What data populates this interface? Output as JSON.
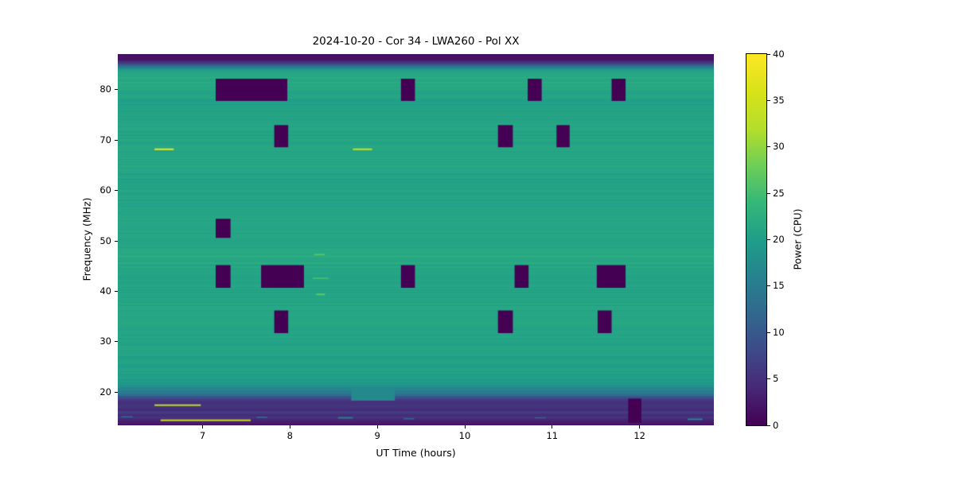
{
  "figure": {
    "title": "2024-10-20 - Cor 34 - LWA260 - Pol XX",
    "xlabel": "UT Time (hours)",
    "ylabel": "Frequency (MHz)",
    "colorbar_label": "Power (CPU)"
  },
  "chart_data": {
    "type": "heatmap",
    "title": "2024-10-20 - Cor 34 - LWA260 - Pol XX",
    "xlabel": "UT Time (hours)",
    "ylabel": "Frequency (MHz)",
    "x_range": [
      6.03,
      12.85
    ],
    "y_range": [
      13.4,
      87.1
    ],
    "x_ticks": [
      7,
      8,
      9,
      10,
      11,
      12
    ],
    "y_ticks": [
      20,
      30,
      40,
      50,
      60,
      70,
      80
    ],
    "grid": false,
    "colorbar": {
      "label": "Power (CPU)",
      "min": 0,
      "max": 40,
      "ticks": [
        0,
        5,
        10,
        15,
        20,
        25,
        30,
        35,
        40
      ],
      "colormap": "viridis",
      "stops": [
        [
          0.0,
          "#440154"
        ],
        [
          0.1,
          "#482878"
        ],
        [
          0.2,
          "#3e4a89"
        ],
        [
          0.3,
          "#31688e"
        ],
        [
          0.4,
          "#26828e"
        ],
        [
          0.5,
          "#1f9e89"
        ],
        [
          0.6,
          "#35b779"
        ],
        [
          0.7,
          "#6ece58"
        ],
        [
          0.8,
          "#b5de2b"
        ],
        [
          0.9,
          "#d8e219"
        ],
        [
          1.0,
          "#fde725"
        ]
      ]
    },
    "background_power_profile": [
      [
        87.5,
        1.5
      ],
      [
        86.0,
        2.0
      ],
      [
        85.3,
        6.0
      ],
      [
        84.6,
        14.0
      ],
      [
        83.9,
        20.0
      ],
      [
        83.2,
        22.0
      ],
      [
        82.2,
        21.6
      ],
      [
        78.0,
        20.8
      ],
      [
        74.0,
        21.2
      ],
      [
        70.0,
        21.0
      ],
      [
        66.0,
        21.3
      ],
      [
        62.0,
        20.7
      ],
      [
        58.0,
        21.0
      ],
      [
        54.0,
        21.2
      ],
      [
        50.0,
        21.0
      ],
      [
        47.0,
        21.8
      ],
      [
        44.0,
        21.2
      ],
      [
        40.0,
        20.9
      ],
      [
        36.0,
        21.1
      ],
      [
        32.0,
        21.0
      ],
      [
        28.0,
        20.8
      ],
      [
        25.0,
        20.6
      ],
      [
        23.5,
        20.3
      ],
      [
        22.5,
        20.0
      ],
      [
        21.0,
        17.5
      ],
      [
        20.0,
        15.0
      ],
      [
        19.2,
        11.0
      ],
      [
        18.6,
        7.0
      ],
      [
        18.0,
        4.5
      ],
      [
        17.3,
        5.5
      ],
      [
        16.6,
        4.0
      ],
      [
        16.0,
        6.5
      ],
      [
        15.4,
        4.0
      ],
      [
        14.9,
        6.0
      ],
      [
        14.4,
        3.0
      ],
      [
        13.8,
        2.5
      ],
      [
        13.4,
        2.0
      ]
    ],
    "row_noise_amplitude": 1.6,
    "flagged_power": 0,
    "flagged_blocks": [
      {
        "t0": 7.15,
        "t1": 7.97,
        "f0": 77.8,
        "f1": 82.2
      },
      {
        "t0": 9.27,
        "t1": 9.43,
        "f0": 77.8,
        "f1": 82.2
      },
      {
        "t0": 10.72,
        "t1": 10.88,
        "f0": 77.8,
        "f1": 82.2
      },
      {
        "t0": 11.68,
        "t1": 11.84,
        "f0": 77.8,
        "f1": 82.2
      },
      {
        "t0": 7.82,
        "t1": 7.98,
        "f0": 68.6,
        "f1": 73.0
      },
      {
        "t0": 10.38,
        "t1": 10.55,
        "f0": 68.6,
        "f1": 73.0
      },
      {
        "t0": 11.05,
        "t1": 11.2,
        "f0": 68.6,
        "f1": 73.0
      },
      {
        "t0": 7.15,
        "t1": 7.32,
        "f0": 50.6,
        "f1": 54.4
      },
      {
        "t0": 7.15,
        "t1": 7.32,
        "f0": 40.7,
        "f1": 45.2
      },
      {
        "t0": 7.67,
        "t1": 8.16,
        "f0": 40.7,
        "f1": 45.2
      },
      {
        "t0": 9.27,
        "t1": 9.43,
        "f0": 40.7,
        "f1": 45.2
      },
      {
        "t0": 10.57,
        "t1": 10.73,
        "f0": 40.7,
        "f1": 45.2
      },
      {
        "t0": 11.51,
        "t1": 11.84,
        "f0": 40.7,
        "f1": 45.2
      },
      {
        "t0": 7.82,
        "t1": 7.98,
        "f0": 31.7,
        "f1": 36.2
      },
      {
        "t0": 10.38,
        "t1": 10.55,
        "f0": 31.7,
        "f1": 36.2
      },
      {
        "t0": 11.52,
        "t1": 11.68,
        "f0": 31.7,
        "f1": 36.2
      },
      {
        "t0": 11.87,
        "t1": 12.02,
        "f0": 13.9,
        "f1": 18.7
      }
    ],
    "patches": [
      {
        "t0": 8.7,
        "t1": 9.2,
        "f0": 18.3,
        "f1": 20.8,
        "power": 17
      }
    ],
    "streaks": [
      {
        "t0": 6.45,
        "t1": 6.67,
        "f": 68.2,
        "power": 38,
        "h": 2
      },
      {
        "t0": 8.72,
        "t1": 8.94,
        "f": 68.2,
        "power": 34,
        "h": 2
      },
      {
        "t0": 8.28,
        "t1": 8.4,
        "f": 47.3,
        "power": 26,
        "h": 2
      },
      {
        "t0": 8.26,
        "t1": 8.44,
        "f": 42.6,
        "power": 25,
        "h": 2
      },
      {
        "t0": 8.3,
        "t1": 8.4,
        "f": 39.4,
        "power": 27,
        "h": 2
      },
      {
        "t0": 6.45,
        "t1": 6.98,
        "f": 17.4,
        "power": 33,
        "h": 2
      },
      {
        "t0": 6.52,
        "t1": 7.55,
        "f": 14.4,
        "power": 35,
        "h": 2
      },
      {
        "t0": 8.55,
        "t1": 8.72,
        "f": 14.9,
        "power": 15,
        "h": 2
      },
      {
        "t0": 12.55,
        "t1": 12.72,
        "f": 14.6,
        "power": 16,
        "h": 2
      },
      {
        "t0": 6.07,
        "t1": 6.2,
        "f": 15.1,
        "power": 13,
        "h": 1.5
      },
      {
        "t0": 7.62,
        "t1": 7.74,
        "f": 15.0,
        "power": 14,
        "h": 1.5
      },
      {
        "t0": 9.3,
        "t1": 9.42,
        "f": 14.7,
        "power": 12,
        "h": 1.5
      },
      {
        "t0": 10.8,
        "t1": 10.93,
        "f": 14.9,
        "power": 11,
        "h": 1.5
      }
    ]
  }
}
